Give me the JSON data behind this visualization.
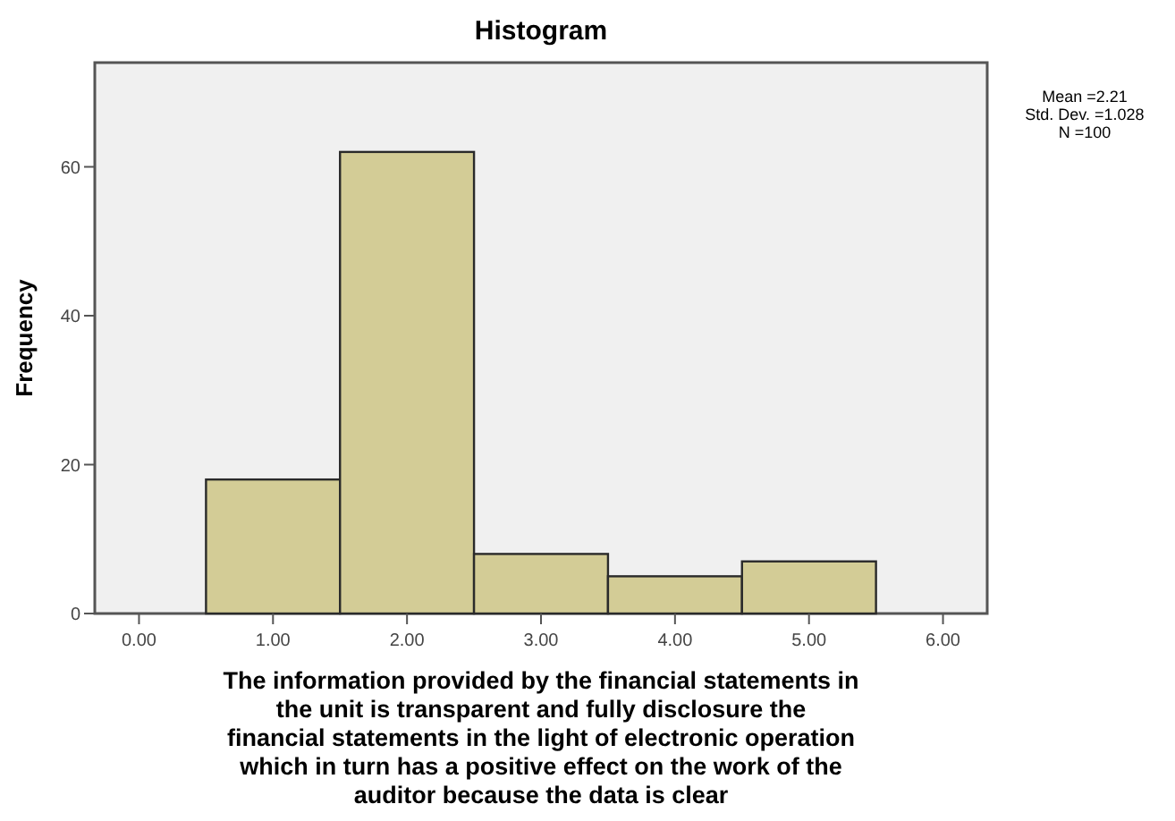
{
  "chart_data": {
    "type": "histogram",
    "title": "Histogram",
    "xlabel": "The information provided by the financial statements in the unit is transparent and fully disclosure the financial statements in the light of electronic operation which in turn has a positive effect on the work of the auditor because the data is clear",
    "ylabel": "Frequency",
    "bins": [
      0.5,
      1.5,
      2.5,
      3.5,
      4.5,
      5.5
    ],
    "values": [
      18,
      62,
      8,
      5,
      7
    ],
    "color": "#d3cc96",
    "xlim": [
      -0.33,
      6.33
    ],
    "xticks": [
      {
        "value": 0,
        "label": "0.00"
      },
      {
        "value": 1,
        "label": "1.00"
      },
      {
        "value": 2,
        "label": "2.00"
      },
      {
        "value": 3,
        "label": "3.00"
      },
      {
        "value": 4,
        "label": "4.00"
      },
      {
        "value": 5,
        "label": "5.00"
      },
      {
        "value": 6,
        "label": "6.00"
      }
    ],
    "ylim": [
      0,
      74
    ],
    "yticks": [
      0,
      20,
      40,
      60
    ],
    "grid": false,
    "annotations": [
      "Mean =2.21",
      "Std. Dev. =1.028",
      "N =100"
    ]
  }
}
